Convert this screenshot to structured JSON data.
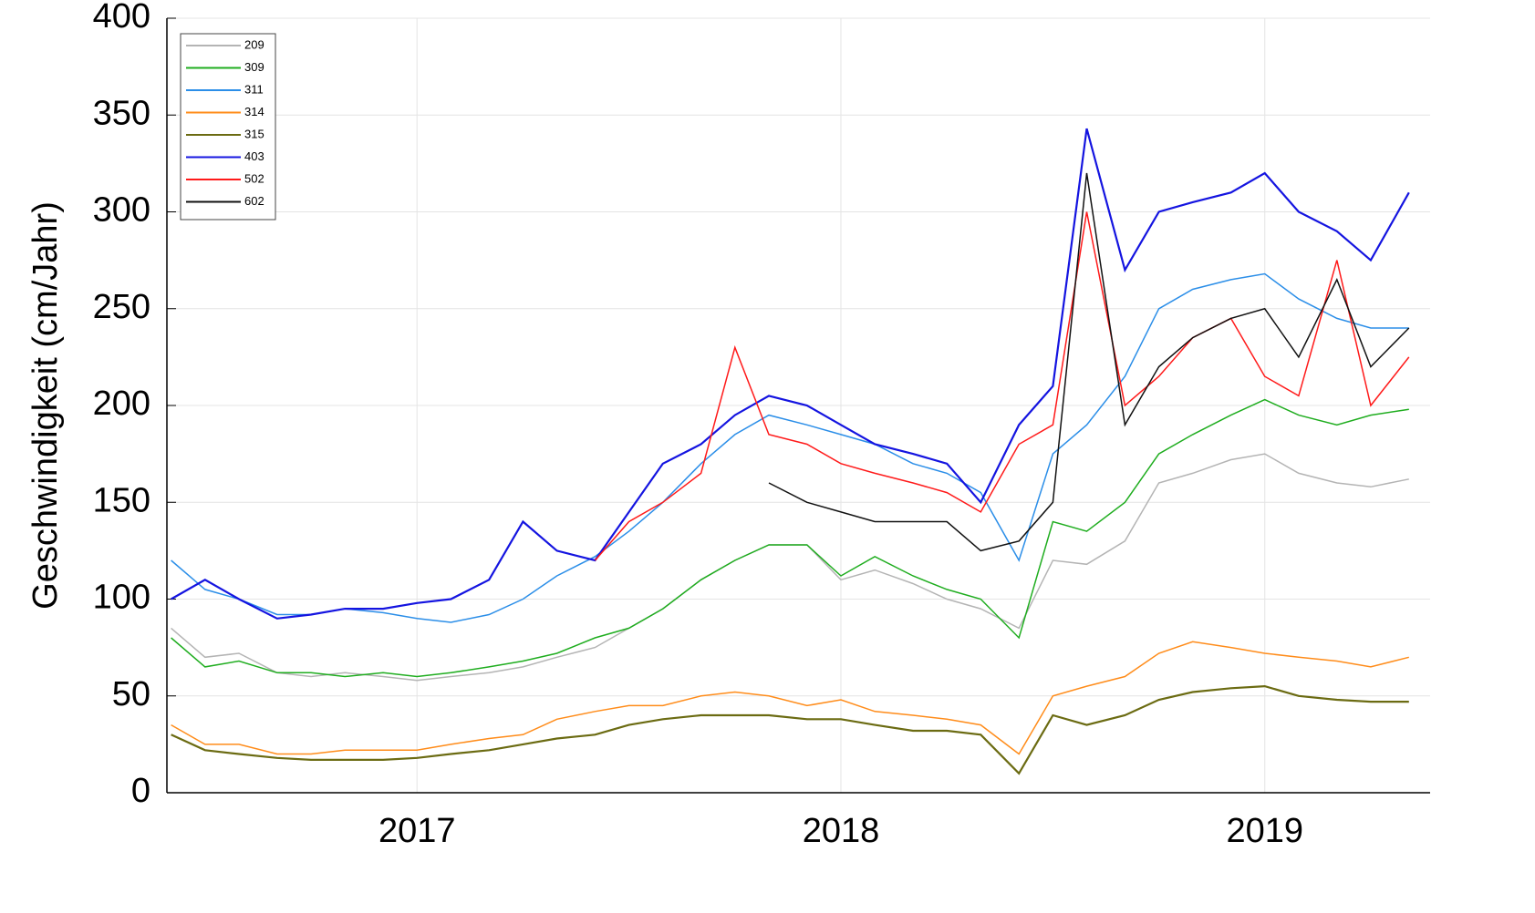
{
  "chart_data": {
    "type": "line",
    "ylabel": "Geschwindigkeit (cm/Jahr)",
    "x": [
      2016.92,
      2017.0,
      2017.08,
      2017.17,
      2017.25,
      2017.33,
      2017.42,
      2017.5,
      2017.58,
      2017.67,
      2017.75,
      2017.83,
      2017.92,
      2018.0,
      2018.08,
      2018.17,
      2018.25,
      2018.33,
      2018.42,
      2018.5,
      2018.58,
      2018.67,
      2018.75,
      2018.83,
      2018.92,
      2019.0,
      2019.08,
      2019.17,
      2019.25,
      2019.33,
      2019.42,
      2019.5,
      2019.58,
      2019.67,
      2019.75,
      2019.84
    ],
    "series": [
      {
        "name": "209",
        "color": "#b4b4b4",
        "values": [
          85,
          70,
          72,
          62,
          60,
          62,
          60,
          58,
          60,
          62,
          65,
          70,
          75,
          85,
          95,
          110,
          120,
          128,
          128,
          110,
          115,
          108,
          100,
          95,
          85,
          120,
          118,
          130,
          160,
          165,
          172,
          175,
          165,
          160,
          158,
          162
        ]
      },
      {
        "name": "309",
        "color": "#1fad1f",
        "values": [
          80,
          65,
          68,
          62,
          62,
          60,
          62,
          60,
          62,
          65,
          68,
          72,
          80,
          85,
          95,
          110,
          120,
          128,
          128,
          112,
          122,
          112,
          105,
          100,
          80,
          140,
          135,
          150,
          175,
          185,
          195,
          203,
          195,
          190,
          195,
          198
        ]
      },
      {
        "name": "311",
        "color": "#2b8ee8",
        "values": [
          120,
          105,
          100,
          92,
          92,
          95,
          93,
          90,
          88,
          92,
          100,
          112,
          122,
          135,
          150,
          170,
          185,
          195,
          190,
          185,
          180,
          170,
          165,
          155,
          120,
          175,
          190,
          215,
          250,
          260,
          265,
          268,
          255,
          245,
          240,
          240
        ]
      },
      {
        "name": "314",
        "color": "#ff8c1a",
        "values": [
          35,
          25,
          25,
          20,
          20,
          22,
          22,
          22,
          25,
          28,
          30,
          38,
          42,
          45,
          45,
          50,
          52,
          50,
          45,
          48,
          42,
          40,
          38,
          35,
          20,
          50,
          55,
          60,
          72,
          78,
          75,
          72,
          70,
          68,
          65,
          70
        ]
      },
      {
        "name": "315",
        "color": "#6b6b12",
        "values": [
          30,
          22,
          20,
          18,
          17,
          17,
          17,
          18,
          20,
          22,
          25,
          28,
          30,
          35,
          38,
          40,
          40,
          40,
          38,
          38,
          35,
          32,
          32,
          30,
          10,
          40,
          35,
          40,
          48,
          52,
          54,
          55,
          50,
          48,
          47,
          47
        ]
      },
      {
        "name": "403",
        "color": "#1414e0",
        "values": [
          100,
          110,
          100,
          90,
          92,
          95,
          95,
          98,
          100,
          110,
          140,
          125,
          120,
          145,
          170,
          180,
          195,
          205,
          200,
          190,
          180,
          175,
          170,
          150,
          190,
          210,
          343,
          270,
          300,
          305,
          310,
          320,
          300,
          290,
          275,
          310
        ]
      },
      {
        "name": "502",
        "color": "#ff1a1a",
        "values": [
          null,
          null,
          null,
          null,
          null,
          null,
          null,
          null,
          null,
          null,
          null,
          null,
          120,
          140,
          150,
          165,
          230,
          185,
          180,
          170,
          165,
          160,
          155,
          145,
          180,
          190,
          300,
          200,
          215,
          235,
          245,
          215,
          205,
          275,
          200,
          225
        ]
      },
      {
        "name": "602",
        "color": "#111111",
        "values": [
          null,
          null,
          null,
          null,
          null,
          null,
          null,
          null,
          null,
          null,
          null,
          null,
          null,
          null,
          null,
          null,
          null,
          160,
          150,
          145,
          140,
          140,
          140,
          125,
          130,
          150,
          320,
          190,
          220,
          235,
          245,
          250,
          225,
          265,
          220,
          240
        ]
      }
    ],
    "xlim": [
      2016.91,
      2019.89
    ],
    "xticks": [
      {
        "value": 2017.5,
        "label": "2017"
      },
      {
        "value": 2018.5,
        "label": "2018"
      },
      {
        "value": 2019.5,
        "label": "2019"
      }
    ],
    "ylim": [
      0,
      400
    ],
    "yticks": [
      0,
      50,
      100,
      150,
      200,
      250,
      300,
      350,
      400
    ],
    "grid": true,
    "legend": "upper left"
  }
}
